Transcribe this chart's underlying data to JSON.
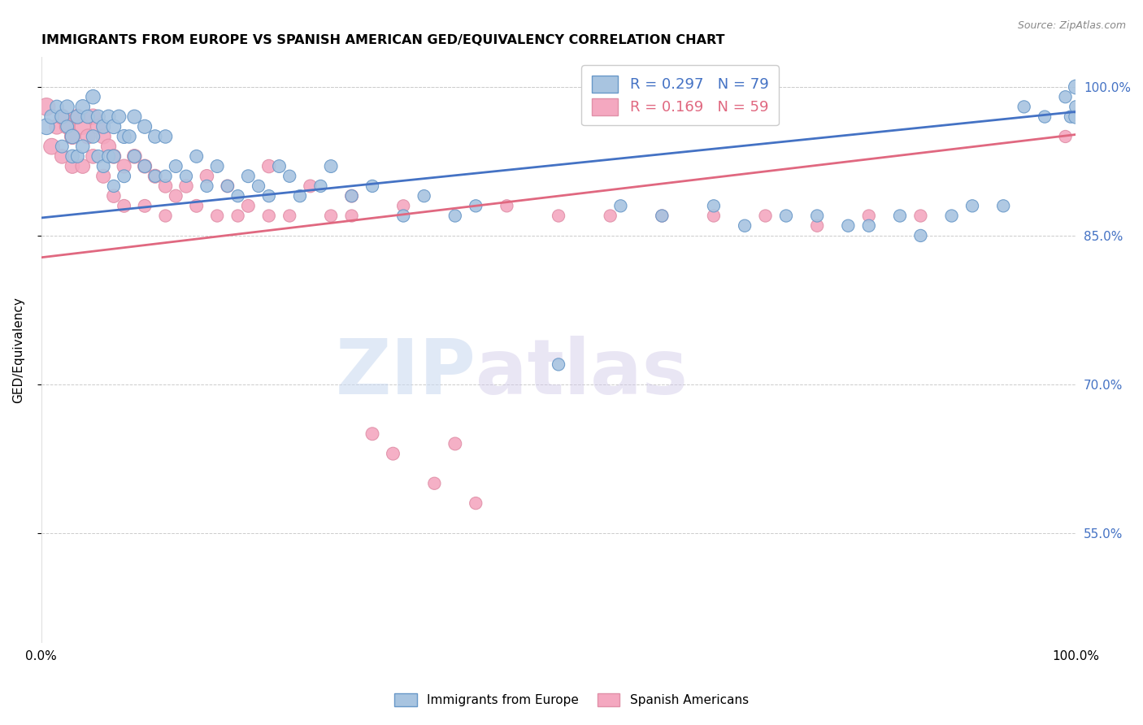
{
  "title": "IMMIGRANTS FROM EUROPE VS SPANISH AMERICAN GED/EQUIVALENCY CORRELATION CHART",
  "source": "Source: ZipAtlas.com",
  "ylabel": "GED/Equivalency",
  "xlim": [
    0.0,
    1.0
  ],
  "ylim": [
    0.44,
    1.03
  ],
  "yticks": [
    0.55,
    0.7,
    0.85,
    1.0
  ],
  "ytick_labels": [
    "55.0%",
    "70.0%",
    "85.0%",
    "100.0%"
  ],
  "xticks": [
    0.0,
    0.1,
    0.2,
    0.3,
    0.4,
    0.5,
    0.6,
    0.7,
    0.8,
    0.9,
    1.0
  ],
  "xtick_labels": [
    "0.0%",
    "",
    "",
    "",
    "",
    "",
    "",
    "",
    "",
    "",
    "100.0%"
  ],
  "blue_R": 0.297,
  "blue_N": 79,
  "pink_R": 0.169,
  "pink_N": 59,
  "blue_color": "#a8c4e0",
  "pink_color": "#f4a8c0",
  "blue_line_color": "#4472c4",
  "pink_line_color": "#e06880",
  "watermark_zip": "ZIP",
  "watermark_atlas": "atlas",
  "blue_line_x": [
    0.0,
    1.0
  ],
  "blue_line_y": [
    0.868,
    0.975
  ],
  "pink_line_x": [
    0.0,
    1.0
  ],
  "pink_line_y": [
    0.828,
    0.952
  ],
  "blue_scatter_x": [
    0.005,
    0.01,
    0.015,
    0.02,
    0.02,
    0.025,
    0.025,
    0.03,
    0.03,
    0.035,
    0.035,
    0.04,
    0.04,
    0.045,
    0.05,
    0.05,
    0.055,
    0.055,
    0.06,
    0.06,
    0.065,
    0.065,
    0.07,
    0.07,
    0.07,
    0.075,
    0.08,
    0.08,
    0.085,
    0.09,
    0.09,
    0.1,
    0.1,
    0.11,
    0.11,
    0.12,
    0.12,
    0.13,
    0.14,
    0.15,
    0.16,
    0.17,
    0.18,
    0.19,
    0.2,
    0.21,
    0.22,
    0.23,
    0.24,
    0.25,
    0.27,
    0.28,
    0.3,
    0.32,
    0.35,
    0.37,
    0.4,
    0.42,
    0.5,
    0.56,
    0.6,
    0.65,
    0.68,
    0.72,
    0.75,
    0.78,
    0.8,
    0.83,
    0.85,
    0.88,
    0.9,
    0.93,
    0.95,
    0.97,
    0.99,
    0.995,
    1.0,
    1.0,
    1.0
  ],
  "blue_scatter_y": [
    0.96,
    0.97,
    0.98,
    0.97,
    0.94,
    0.98,
    0.96,
    0.95,
    0.93,
    0.97,
    0.93,
    0.98,
    0.94,
    0.97,
    0.99,
    0.95,
    0.97,
    0.93,
    0.96,
    0.92,
    0.97,
    0.93,
    0.96,
    0.93,
    0.9,
    0.97,
    0.95,
    0.91,
    0.95,
    0.97,
    0.93,
    0.96,
    0.92,
    0.95,
    0.91,
    0.95,
    0.91,
    0.92,
    0.91,
    0.93,
    0.9,
    0.92,
    0.9,
    0.89,
    0.91,
    0.9,
    0.89,
    0.92,
    0.91,
    0.89,
    0.9,
    0.92,
    0.89,
    0.9,
    0.87,
    0.89,
    0.87,
    0.88,
    0.72,
    0.88,
    0.87,
    0.88,
    0.86,
    0.87,
    0.87,
    0.86,
    0.86,
    0.87,
    0.85,
    0.87,
    0.88,
    0.88,
    0.98,
    0.97,
    0.99,
    0.97,
    0.97,
    0.98,
    1.0
  ],
  "blue_scatter_size": [
    200,
    160,
    140,
    150,
    130,
    150,
    130,
    160,
    140,
    150,
    130,
    160,
    140,
    140,
    160,
    140,
    150,
    130,
    150,
    130,
    150,
    130,
    160,
    140,
    120,
    150,
    150,
    130,
    140,
    150,
    130,
    150,
    130,
    140,
    120,
    140,
    120,
    130,
    120,
    130,
    120,
    130,
    120,
    120,
    130,
    120,
    120,
    130,
    120,
    120,
    120,
    130,
    120,
    120,
    120,
    120,
    120,
    120,
    120,
    120,
    120,
    120,
    120,
    120,
    120,
    120,
    120,
    120,
    120,
    120,
    120,
    120,
    120,
    120,
    120,
    120,
    150,
    120,
    160
  ],
  "pink_scatter_x": [
    0.005,
    0.01,
    0.015,
    0.02,
    0.02,
    0.025,
    0.03,
    0.03,
    0.035,
    0.04,
    0.04,
    0.045,
    0.05,
    0.05,
    0.055,
    0.06,
    0.06,
    0.065,
    0.07,
    0.07,
    0.08,
    0.08,
    0.09,
    0.1,
    0.1,
    0.11,
    0.12,
    0.12,
    0.13,
    0.14,
    0.15,
    0.16,
    0.17,
    0.18,
    0.19,
    0.2,
    0.22,
    0.22,
    0.24,
    0.26,
    0.28,
    0.3,
    0.3,
    0.32,
    0.34,
    0.35,
    0.38,
    0.4,
    0.42,
    0.45,
    0.5,
    0.55,
    0.6,
    0.65,
    0.7,
    0.75,
    0.8,
    0.85,
    0.99
  ],
  "pink_scatter_y": [
    0.98,
    0.94,
    0.96,
    0.97,
    0.93,
    0.96,
    0.95,
    0.92,
    0.97,
    0.96,
    0.92,
    0.95,
    0.97,
    0.93,
    0.96,
    0.95,
    0.91,
    0.94,
    0.93,
    0.89,
    0.92,
    0.88,
    0.93,
    0.92,
    0.88,
    0.91,
    0.9,
    0.87,
    0.89,
    0.9,
    0.88,
    0.91,
    0.87,
    0.9,
    0.87,
    0.88,
    0.92,
    0.87,
    0.87,
    0.9,
    0.87,
    0.89,
    0.87,
    0.65,
    0.63,
    0.88,
    0.6,
    0.64,
    0.58,
    0.88,
    0.87,
    0.87,
    0.87,
    0.87,
    0.87,
    0.86,
    0.87,
    0.87,
    0.95
  ],
  "pink_scatter_size": [
    240,
    200,
    180,
    190,
    160,
    180,
    190,
    160,
    180,
    190,
    160,
    170,
    190,
    160,
    180,
    170,
    150,
    170,
    160,
    140,
    150,
    130,
    160,
    150,
    130,
    150,
    140,
    120,
    130,
    140,
    130,
    140,
    120,
    130,
    120,
    130,
    140,
    120,
    120,
    130,
    120,
    130,
    120,
    130,
    130,
    120,
    120,
    130,
    120,
    120,
    120,
    120,
    120,
    120,
    120,
    120,
    120,
    120,
    120
  ]
}
